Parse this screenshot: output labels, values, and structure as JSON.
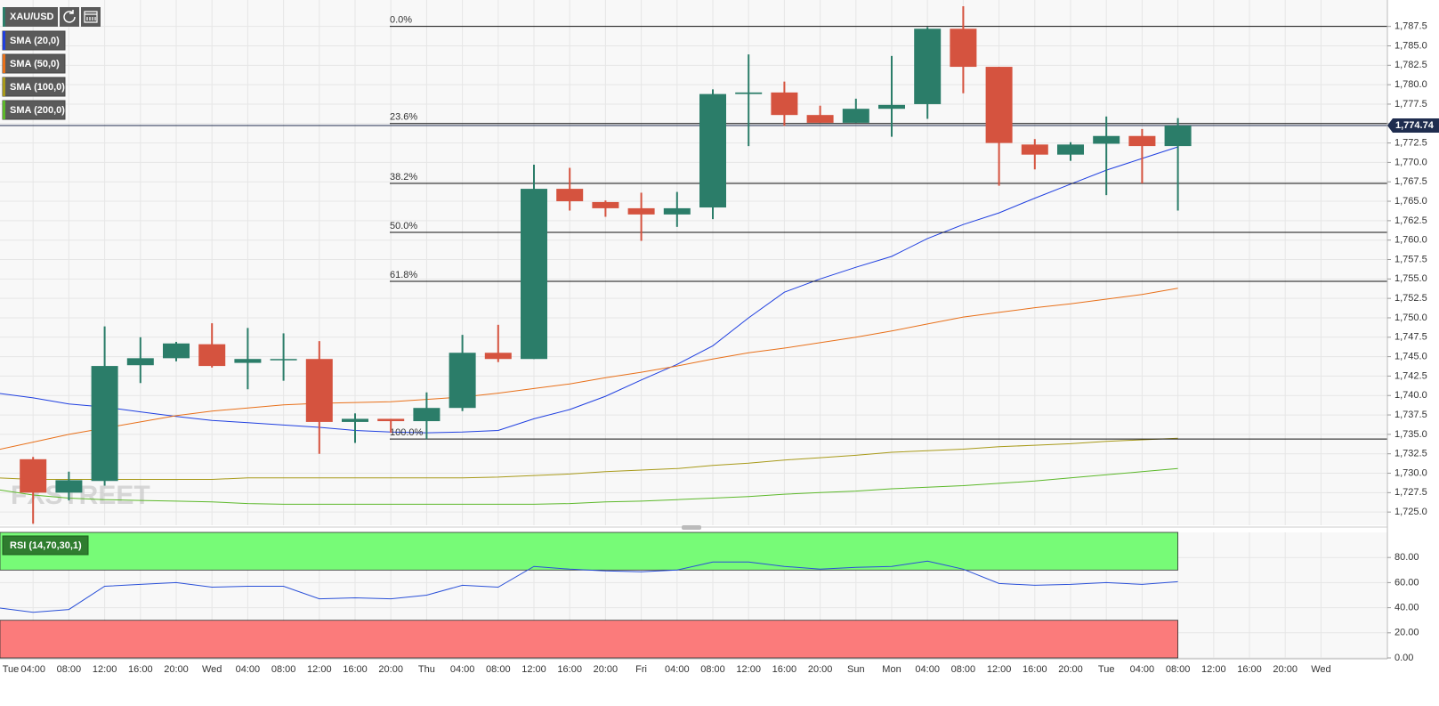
{
  "chart_data": {
    "type": "candlestick",
    "title": "XAU/USD",
    "watermark": "FXSTREET",
    "categories": [
      "Tue",
      "04:00",
      "08:00",
      "12:00",
      "16:00",
      "20:00",
      "Wed",
      "04:00",
      "08:00",
      "12:00",
      "16:00",
      "20:00",
      "Thu",
      "04:00",
      "08:00",
      "12:00",
      "16:00",
      "20:00",
      "Fri",
      "04:00",
      "08:00",
      "12:00",
      "16:00",
      "20:00",
      "Sun",
      "Mon",
      "04:00",
      "08:00",
      "12:00",
      "16:00",
      "20:00",
      "Tue",
      "04:00",
      "08:00",
      "12:00",
      "16:00",
      "20:00",
      "Wed"
    ],
    "open": [
      null,
      1731.8,
      1727.5,
      1729.0,
      1743.9,
      1744.8,
      1746.6,
      1744.2,
      1744.7,
      1744.7,
      1736.6,
      1737.0,
      1736.7,
      1738.4,
      1745.5,
      1744.7,
      1766.6,
      1764.9,
      1764.1,
      1763.3,
      1764.2,
      1778.8,
      1779.0,
      1776.1,
      1775.1,
      1776.9,
      1777.5,
      1787.2,
      1782.3,
      1772.3,
      1771.0,
      1772.4,
      1773.4,
      1772.1,
      null,
      null,
      null,
      null
    ],
    "high": [
      null,
      1732.1,
      1730.2,
      1748.9,
      1747.5,
      1746.9,
      1749.3,
      1748.7,
      1748.0,
      1747.0,
      1737.7,
      1737.0,
      1740.4,
      1747.8,
      1749.1,
      1769.7,
      1769.3,
      1765.1,
      1766.1,
      1766.2,
      1779.4,
      1783.9,
      1780.4,
      1777.3,
      1778.2,
      1783.7,
      1787.4,
      1790.1,
      1782.3,
      1773.0,
      1772.6,
      1775.9,
      1774.3,
      1775.7,
      null,
      null,
      null,
      null
    ],
    "low": [
      null,
      1723.5,
      1726.5,
      1728.4,
      1741.6,
      1744.4,
      1743.6,
      1740.8,
      1741.9,
      1732.5,
      1733.9,
      1735.2,
      1734.4,
      1738.0,
      1744.3,
      1744.7,
      1763.8,
      1763.0,
      1759.9,
      1761.7,
      1762.7,
      1772.1,
      1774.7,
      1775.1,
      1775.1,
      1773.3,
      1775.6,
      1778.9,
      1767.0,
      1769.1,
      1770.2,
      1765.8,
      1767.3,
      1763.8,
      null,
      null,
      null,
      null
    ],
    "close": [
      null,
      1727.5,
      1729.1,
      1743.8,
      1744.8,
      1746.7,
      1743.8,
      1744.7,
      1744.7,
      1736.6,
      1737.0,
      1736.7,
      1738.4,
      1745.5,
      1744.7,
      1766.6,
      1765.0,
      1764.1,
      1763.3,
      1764.1,
      1778.8,
      1779.0,
      1776.1,
      1775.1,
      1776.9,
      1777.4,
      1787.2,
      1782.3,
      1772.5,
      1771.0,
      1772.3,
      1773.4,
      1772.1,
      1774.74,
      null,
      null,
      null,
      null
    ],
    "up_color": "#2b7d69",
    "down_color": "#d5533f",
    "series": [
      {
        "name": "SMA (20,0)",
        "color": "#1f3fe0",
        "values": [
          1740.3,
          1739.7,
          1738.9,
          1738.5,
          1737.9,
          1737.3,
          1736.8,
          1736.5,
          1736.2,
          1735.9,
          1735.5,
          1735.3,
          1735.2,
          1735.3,
          1735.5,
          1737.0,
          1738.2,
          1739.9,
          1742.0,
          1744.0,
          1746.4,
          1750.0,
          1753.3,
          1755.0,
          1756.5,
          1757.9,
          1760.2,
          1762.0,
          1763.5,
          1765.4,
          1767.2,
          1769.0,
          1770.5,
          1772.0,
          null,
          null,
          null,
          null
        ]
      },
      {
        "name": "SMA (50,0)",
        "color": "#e8701a",
        "values": [
          1733.0,
          1734.0,
          1735.0,
          1735.8,
          1736.6,
          1737.4,
          1738.0,
          1738.4,
          1738.8,
          1739.0,
          1739.1,
          1739.2,
          1739.5,
          1739.8,
          1740.3,
          1740.9,
          1741.5,
          1742.3,
          1743.0,
          1743.8,
          1744.7,
          1745.5,
          1746.1,
          1746.8,
          1747.5,
          1748.3,
          1749.2,
          1750.1,
          1750.7,
          1751.3,
          1751.8,
          1752.4,
          1753.0,
          1753.8,
          null,
          null,
          null,
          null
        ]
      },
      {
        "name": "SMA (100,0)",
        "color": "#a89a1a",
        "values": [
          1729.4,
          1729.2,
          1729.2,
          1729.2,
          1729.2,
          1729.2,
          1729.2,
          1729.4,
          1729.4,
          1729.4,
          1729.4,
          1729.4,
          1729.4,
          1729.4,
          1729.5,
          1729.7,
          1729.9,
          1730.2,
          1730.4,
          1730.6,
          1731.0,
          1731.3,
          1731.7,
          1732.0,
          1732.3,
          1732.7,
          1732.9,
          1733.1,
          1733.4,
          1733.6,
          1733.8,
          1734.1,
          1734.3,
          1734.5,
          null,
          null,
          null,
          null
        ]
      },
      {
        "name": "SMA (200,0)",
        "color": "#5cb82a",
        "values": [
          1727.9,
          1727.2,
          1726.8,
          1726.6,
          1726.5,
          1726.4,
          1726.3,
          1726.1,
          1726.0,
          1726.0,
          1726.0,
          1726.0,
          1726.0,
          1726.0,
          1726.0,
          1726.0,
          1726.1,
          1726.3,
          1726.4,
          1726.6,
          1726.8,
          1727.0,
          1727.3,
          1727.5,
          1727.7,
          1728.0,
          1728.2,
          1728.4,
          1728.7,
          1729.0,
          1729.4,
          1729.8,
          1730.2,
          1730.6,
          null,
          null,
          null,
          null
        ]
      }
    ],
    "current_price": {
      "value": 1774.74,
      "label": "1,774.74",
      "color": "#1f2d4f"
    },
    "fibonacci": [
      {
        "name": "0.0%",
        "price": 1787.5
      },
      {
        "name": "23.6%",
        "price": 1775.0
      },
      {
        "name": "38.2%",
        "price": 1767.3
      },
      {
        "name": "50.0%",
        "price": 1761.0
      },
      {
        "name": "61.8%",
        "price": 1754.7
      },
      {
        "name": "100.0%",
        "price": 1734.4
      }
    ],
    "ylim": [
      1723.3,
      1790.9
    ],
    "yticks": [
      {
        "value": 1725.0,
        "label": "1,725.0"
      },
      {
        "value": 1727.5,
        "label": "1,727.5"
      },
      {
        "value": 1730.0,
        "label": "1,730.0"
      },
      {
        "value": 1732.5,
        "label": "1,732.5"
      },
      {
        "value": 1735.0,
        "label": "1,735.0"
      },
      {
        "value": 1737.5,
        "label": "1,737.5"
      },
      {
        "value": 1740.0,
        "label": "1,740.0"
      },
      {
        "value": 1742.5,
        "label": "1,742.5"
      },
      {
        "value": 1745.0,
        "label": "1,745.0"
      },
      {
        "value": 1747.5,
        "label": "1,747.5"
      },
      {
        "value": 1750.0,
        "label": "1,750.0"
      },
      {
        "value": 1752.5,
        "label": "1,752.5"
      },
      {
        "value": 1755.0,
        "label": "1,755.0"
      },
      {
        "value": 1757.5,
        "label": "1,757.5"
      },
      {
        "value": 1760.0,
        "label": "1,760.0"
      },
      {
        "value": 1762.5,
        "label": "1,762.5"
      },
      {
        "value": 1765.0,
        "label": "1,765.0"
      },
      {
        "value": 1767.5,
        "label": "1,767.5"
      },
      {
        "value": 1770.0,
        "label": "1,770.0"
      },
      {
        "value": 1772.5,
        "label": "1,772.5"
      },
      {
        "value": 1775.0,
        "label": "1,775.0"
      },
      {
        "value": 1777.5,
        "label": "1,777.5"
      },
      {
        "value": 1780.0,
        "label": "1,780.0"
      },
      {
        "value": 1782.5,
        "label": "1,782.5"
      },
      {
        "value": 1785.0,
        "label": "1,785.0"
      },
      {
        "value": 1787.5,
        "label": "1,787.5"
      }
    ],
    "grid": true,
    "rsi": {
      "name": "RSI (14,70,30,1)",
      "color": "#2a50d8",
      "values": [
        40,
        36.4,
        38.6,
        57.1,
        58.6,
        60,
        56.4,
        57.1,
        57.1,
        47.1,
        47.9,
        47.1,
        50,
        57.9,
        56.4,
        72.9,
        70.7,
        69.3,
        68.6,
        70,
        76.4,
        76.4,
        72.9,
        70.7,
        72.1,
        72.9,
        77.1,
        70.7,
        59.3,
        57.9,
        58.6,
        60,
        58.6,
        60.7,
        null,
        null,
        null,
        null
      ],
      "zones": [
        {
          "from": 70,
          "to": 100,
          "color": "#77fb77"
        },
        {
          "from": 0,
          "to": 30,
          "color": "#fb7b7b"
        }
      ],
      "ylim": [
        0,
        100
      ],
      "yticks": [
        {
          "value": 0,
          "label": "0.00"
        },
        {
          "value": 20,
          "label": "20.00"
        },
        {
          "value": 40,
          "label": "40.00"
        },
        {
          "value": 60,
          "label": "60.00"
        },
        {
          "value": 80,
          "label": "80.00"
        }
      ]
    }
  }
}
